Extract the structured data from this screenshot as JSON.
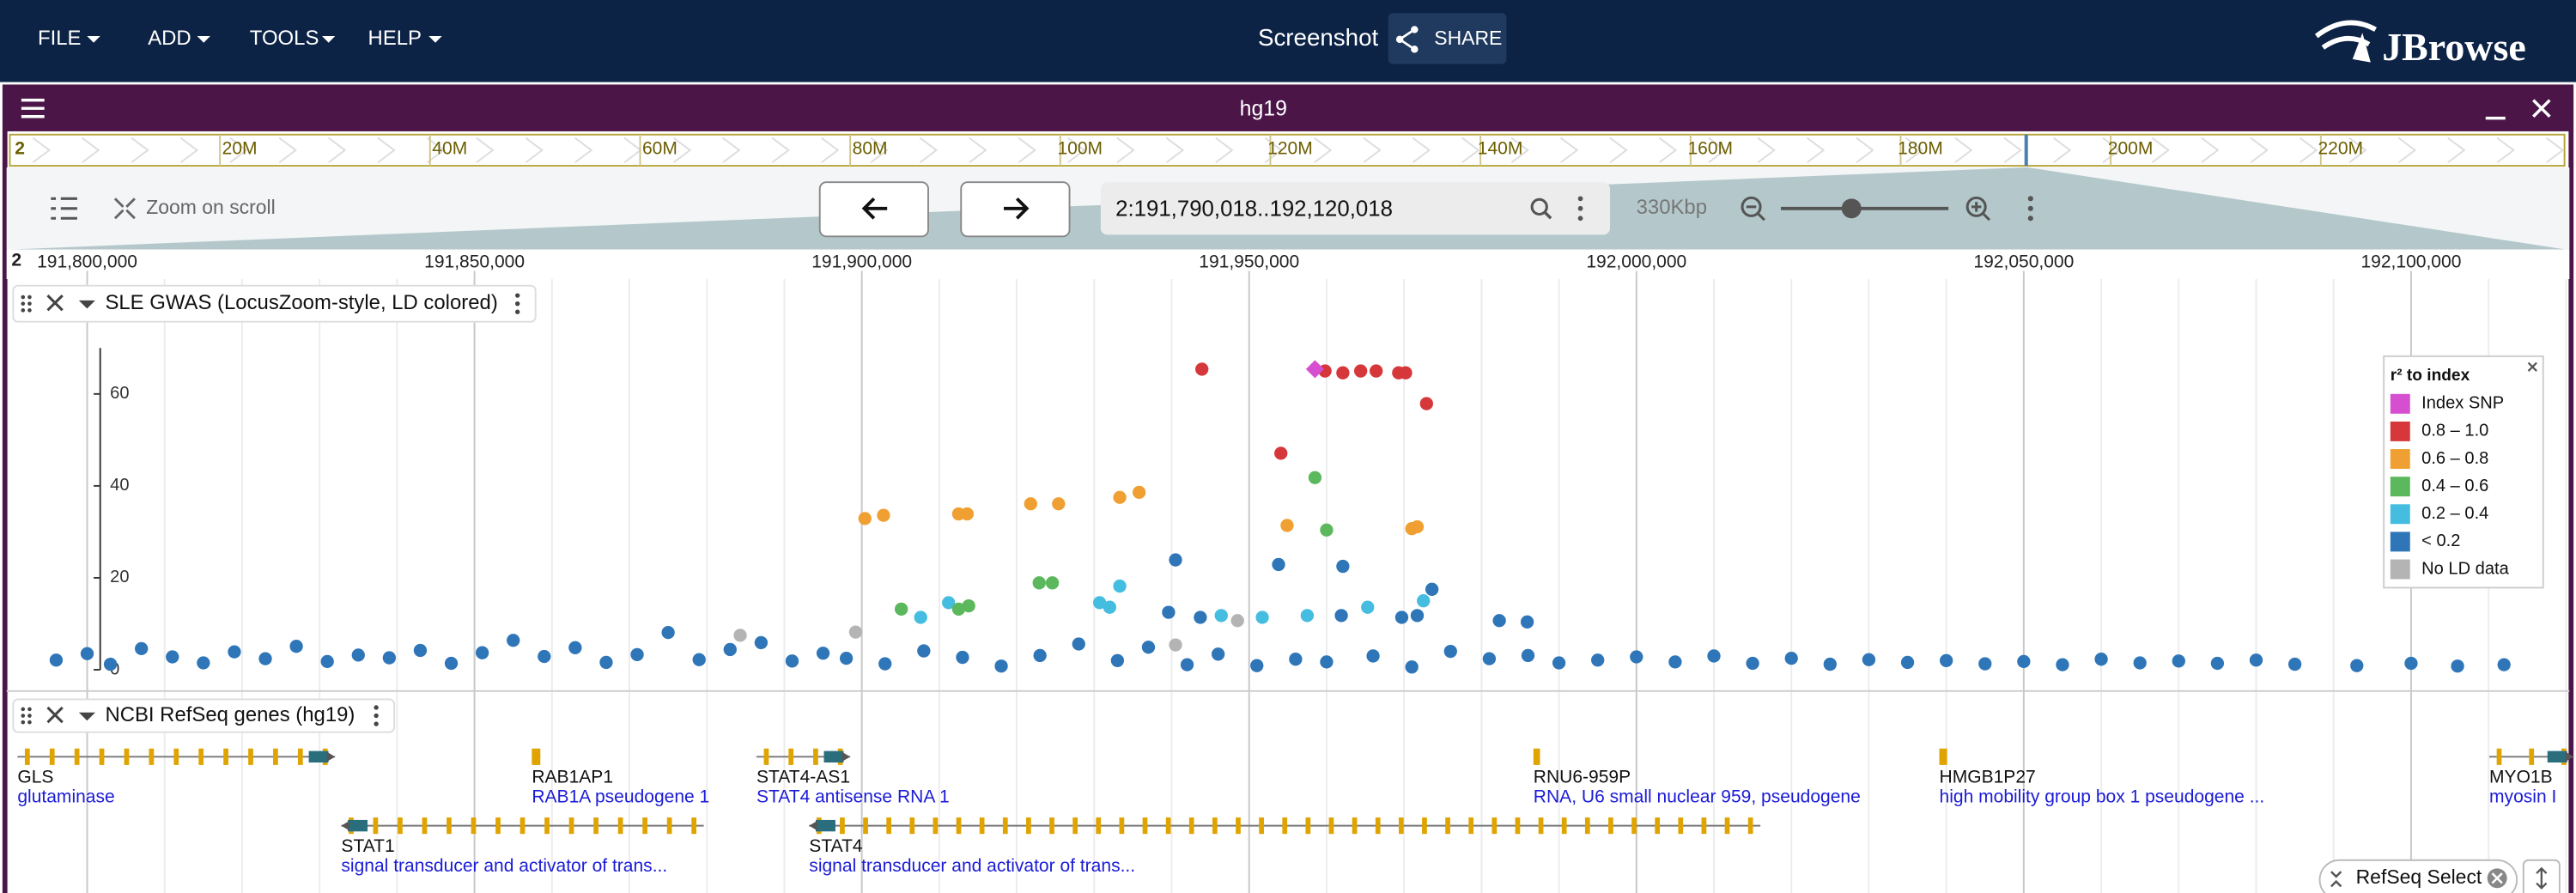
{
  "menu": [
    "FILE",
    "ADD",
    "TOOLS",
    "HELP"
  ],
  "header": {
    "screenshot": "Screenshot",
    "share": "SHARE",
    "logo": "JBrowse"
  },
  "view": {
    "assembly": "hg19",
    "zoom_on_scroll": "Zoom on scroll",
    "location": "2:191,790,018..192,120,018",
    "width_label": "330Kbp",
    "start": 191790018,
    "end": 192120018
  },
  "overview": {
    "chrom": "2",
    "xlim": [
      0,
      243199373
    ],
    "ticks": [
      {
        "value": 20000000,
        "label": "20M"
      },
      {
        "value": 40000000,
        "label": "40M"
      },
      {
        "value": 60000000,
        "label": "60M"
      },
      {
        "value": 80000000,
        "label": "80M"
      },
      {
        "value": 100000000,
        "label": "100M"
      },
      {
        "value": 120000000,
        "label": "120M"
      },
      {
        "value": 140000000,
        "label": "140M"
      },
      {
        "value": 160000000,
        "label": "160M"
      },
      {
        "value": 180000000,
        "label": "180M"
      },
      {
        "value": 200000000,
        "label": "200M"
      },
      {
        "value": 220000000,
        "label": "220M"
      }
    ]
  },
  "ruler": {
    "chrom": "2",
    "ticks": [
      {
        "value": 191800000,
        "label": "191,800,000"
      },
      {
        "value": 191850000,
        "label": "191,850,000"
      },
      {
        "value": 191900000,
        "label": "191,900,000"
      },
      {
        "value": 191950000,
        "label": "191,950,000"
      },
      {
        "value": 192000000,
        "label": "192,000,000"
      },
      {
        "value": 192050000,
        "label": "192,050,000"
      },
      {
        "value": 192100000,
        "label": "192,100,000"
      }
    ]
  },
  "gwas": {
    "title": "SLE GWAS (LocusZoom-style, LD colored)",
    "ylim": [
      0,
      70
    ],
    "yticks": [
      0,
      20,
      40,
      60
    ],
    "legend_title": "r² to index",
    "series": [
      {
        "name": "Index SNP",
        "color": "#d64fd0",
        "marker": "diamond",
        "positions": [
          191958500
        ],
        "values": [
          65.4
        ]
      },
      {
        "name": "0.8 – 1.0",
        "color": "#d6373a",
        "positions": [
          191943900,
          191959800,
          191962100,
          191964400,
          191966400,
          191969300,
          191970200,
          191972900,
          191954100
        ],
        "values": [
          65.4,
          65.0,
          64.6,
          65.0,
          65.0,
          64.6,
          64.6,
          57.9,
          47.1
        ]
      },
      {
        "name": "0.6 – 0.8",
        "color": "#f0a032",
        "positions": [
          191900400,
          191902800,
          191912500,
          191913600,
          191921800,
          191925400,
          191933300,
          191935800,
          191954900,
          191971000,
          191971700
        ],
        "values": [
          32.9,
          33.6,
          33.9,
          33.9,
          36.1,
          36.1,
          37.5,
          38.6,
          31.4,
          30.7,
          31.1
        ]
      },
      {
        "name": "0.4 – 0.6",
        "color": "#5cb85c",
        "positions": [
          191905100,
          191912500,
          191913800,
          191922900,
          191924600,
          191958500,
          191960000
        ],
        "values": [
          13.2,
          13.2,
          13.9,
          18.9,
          18.9,
          41.8,
          30.4
        ]
      },
      {
        "name": "0.2 – 0.4",
        "color": "#45bde0",
        "positions": [
          191907600,
          191911200,
          191930700,
          191932000,
          191933300,
          191946400,
          191951700,
          191957500,
          191965300,
          191972500
        ],
        "values": [
          11.4,
          14.6,
          14.6,
          13.6,
          18.2,
          11.8,
          11.4,
          11.8,
          13.6,
          15.0
        ]
      },
      {
        "name": "< 0.2",
        "color": "#2f76b8",
        "positions": [
          191940500,
          191953800,
          191962100,
          191973600,
          191971700,
          191969700,
          191982300,
          191985900,
          191961900,
          191939600,
          191943700,
          191796000,
          191800000,
          191803000,
          191807000,
          191811000,
          191815000,
          191819000,
          191823000,
          191827000,
          191831000,
          191835000,
          191839000,
          191843000,
          191847000,
          191851000,
          191855000,
          191859000,
          191863000,
          191867000,
          191871000,
          191875000,
          191879000,
          191883000,
          191887000,
          191891000,
          191895000,
          191898000,
          191903000,
          191908000,
          191913000,
          191918000,
          191923000,
          191928000,
          191933000,
          191937000,
          191942000,
          191946000,
          191951000,
          191956000,
          191960000,
          191966000,
          191971000,
          191976000,
          191981000,
          191986000,
          191990000,
          191995000,
          192000000,
          192005000,
          192010000,
          192015000,
          192020000,
          192025000,
          192030000,
          192035000,
          192040000,
          192045000,
          192050000,
          192055000,
          192060000,
          192065000,
          192070000,
          192075000,
          192080000,
          192085000,
          192093000,
          192100000,
          192106000,
          192112000
        ],
        "values": [
          23.9,
          22.9,
          22.5,
          17.5,
          11.8,
          11.4,
          10.7,
          10.4,
          11.8,
          12.5,
          11.4,
          2.1,
          3.5,
          1.2,
          4.6,
          2.8,
          1.5,
          3.9,
          2.4,
          5.1,
          1.8,
          3.2,
          2.6,
          4.2,
          1.4,
          3.7,
          6.4,
          2.9,
          4.8,
          1.6,
          3.3,
          8.1,
          2.2,
          4.4,
          5.9,
          1.9,
          3.6,
          2.5,
          1.3,
          4.1,
          2.7,
          0.8,
          3.1,
          5.6,
          2.0,
          4.9,
          1.1,
          3.4,
          0.9,
          2.3,
          1.7,
          3.0,
          0.6,
          4.0,
          2.4,
          3.1,
          1.5,
          2.1,
          2.8,
          1.7,
          3.0,
          1.4,
          2.5,
          1.2,
          2.2,
          1.6,
          2.0,
          1.3,
          1.8,
          1.1,
          2.3,
          1.5,
          1.9,
          1.4,
          2.1,
          1.2,
          0.9,
          1.4,
          0.8,
          1.1
        ]
      },
      {
        "name": "No LD data",
        "color": "#b4b4b4",
        "positions": [
          191899200,
          191940500,
          191948500,
          191884300
        ],
        "values": [
          8.2,
          5.4,
          10.7,
          7.5
        ]
      }
    ]
  },
  "genes": {
    "title": "NCBI RefSeq genes (hg19)",
    "chip": "RefSeq Select",
    "features": [
      {
        "name": "GLS",
        "description": "glutaminase",
        "start": 191791000,
        "end": 191832000,
        "strand": "+"
      },
      {
        "name": "RAB1AP1",
        "description": "RAB1A pseudogene 1",
        "start": 191857400,
        "end": 191858500,
        "strand": "+"
      },
      {
        "name": "STAT4-AS1",
        "description": "STAT4 antisense RNA 1",
        "start": 191886400,
        "end": 191898500,
        "strand": "+"
      },
      {
        "name": "RNU6-959P",
        "description": "RNA, U6 small nuclear 959, pseudogene",
        "start": 191986700,
        "end": 191987100,
        "strand": "+"
      },
      {
        "name": "HMGB1P27",
        "description": "high mobility group box 1 pseudogene ...",
        "start": 192039100,
        "end": 192040100,
        "strand": "+"
      },
      {
        "name": "MYO1B",
        "description": "myosin I",
        "start": 192110100,
        "end": 192121000,
        "strand": "+"
      },
      {
        "name": "STAT1",
        "description": "signal transducer and activator of trans...",
        "start": 191832800,
        "end": 191879600,
        "strand": "-"
      },
      {
        "name": "STAT4",
        "description": "signal transducer and activator of trans...",
        "start": 191893200,
        "end": 192016000,
        "strand": "-"
      }
    ]
  }
}
